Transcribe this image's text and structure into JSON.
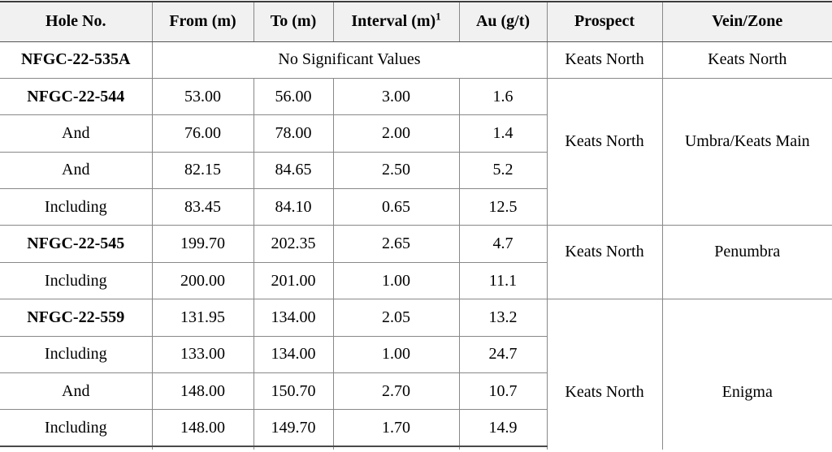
{
  "table": {
    "title": "Drill results table",
    "columns": [
      {
        "key": "hole",
        "label": "Hole No."
      },
      {
        "key": "from",
        "label": "From (m)"
      },
      {
        "key": "to",
        "label": "To (m)"
      },
      {
        "key": "interval",
        "label": "Interval (m)",
        "sup": "1"
      },
      {
        "key": "au",
        "label": "Au (g/t)"
      },
      {
        "key": "prospect",
        "label": "Prospect"
      },
      {
        "key": "vein",
        "label": "Vein/Zone"
      }
    ],
    "groups": [
      {
        "prospect": "Keats North",
        "vein": "Keats North",
        "rows": [
          {
            "hole": "NFGC-22-535A",
            "bold": true,
            "span_text": "No Significant Values"
          }
        ]
      },
      {
        "prospect": "Keats North",
        "vein": "Umbra/Keats Main",
        "rows": [
          {
            "hole": "NFGC-22-544",
            "bold": true,
            "from": "53.00",
            "to": "56.00",
            "interval": "3.00",
            "au": "1.6"
          },
          {
            "hole": "And",
            "from": "76.00",
            "to": "78.00",
            "interval": "2.00",
            "au": "1.4"
          },
          {
            "hole": "And",
            "from": "82.15",
            "to": "84.65",
            "interval": "2.50",
            "au": "5.2"
          },
          {
            "hole": "Including",
            "from": "83.45",
            "to": "84.10",
            "interval": "0.65",
            "au": "12.5"
          }
        ]
      },
      {
        "prospect": "Keats North",
        "vein": "Penumbra",
        "rows": [
          {
            "hole": "NFGC-22-545",
            "bold": true,
            "from": "199.70",
            "to": "202.35",
            "interval": "2.65",
            "au": "4.7"
          },
          {
            "hole": "Including",
            "from": "200.00",
            "to": "201.00",
            "interval": "1.00",
            "au": "11.1"
          }
        ]
      },
      {
        "prospect": "Keats North",
        "vein": "Enigma",
        "cropped": true,
        "rows": [
          {
            "hole": "NFGC-22-559",
            "bold": true,
            "from": "131.95",
            "to": "134.00",
            "interval": "2.05",
            "au": "13.2"
          },
          {
            "hole": "Including",
            "from": "133.00",
            "to": "134.00",
            "interval": "1.00",
            "au": "24.7"
          },
          {
            "hole": "And",
            "from": "148.00",
            "to": "150.70",
            "interval": "2.70",
            "au": "10.7"
          },
          {
            "hole": "Including",
            "from": "148.00",
            "to": "149.70",
            "interval": "1.70",
            "au": "14.9"
          }
        ]
      }
    ],
    "colors": {
      "header_bg": "#f1f1f1",
      "grid_line": "#888888",
      "heavy_line": "#3d3d3d",
      "text": "#000000",
      "background": "#ffffff"
    }
  }
}
